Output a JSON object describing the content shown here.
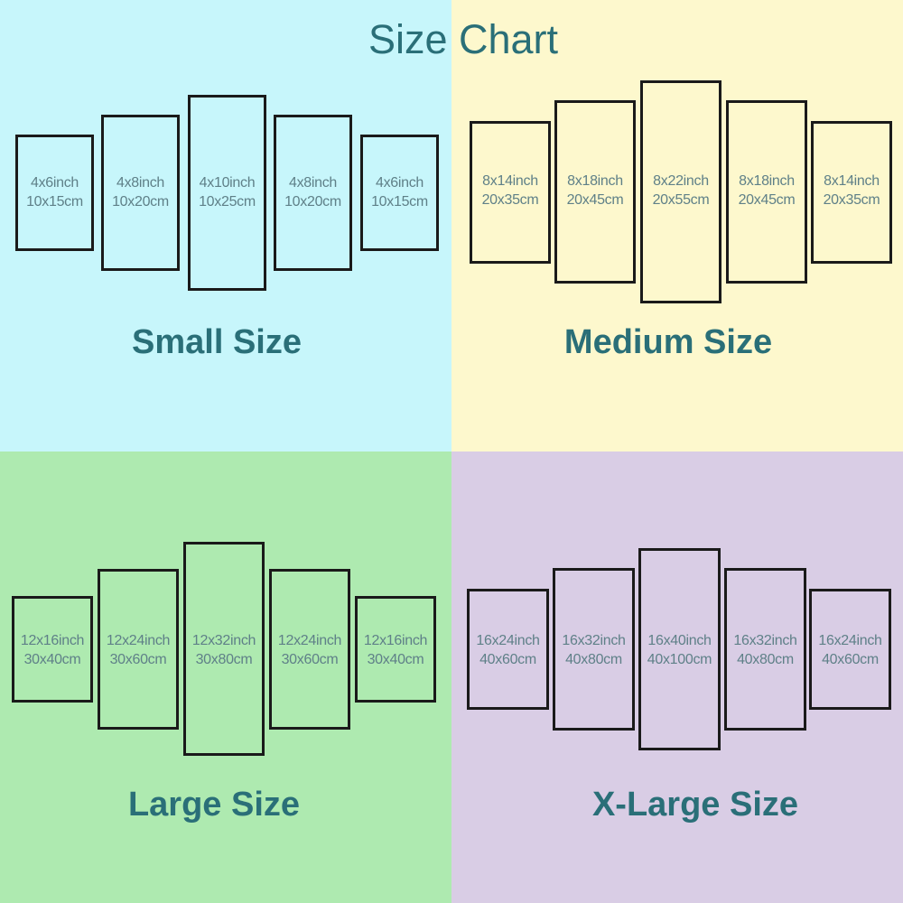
{
  "title": "Size Chart",
  "colors": {
    "small_bg": "#c7f6fb",
    "medium_bg": "#fdf8cd",
    "large_bg": "#aeeab0",
    "xlarge_bg": "#d9cde5",
    "heading": "#2a6f78",
    "panel_text": "#5f8088"
  },
  "groups": [
    {
      "label": "Small Size",
      "panels": [
        {
          "inch": "4x6inch",
          "cm": "10x15cm"
        },
        {
          "inch": "4x8inch",
          "cm": "10x20cm"
        },
        {
          "inch": "4x10inch",
          "cm": "10x25cm"
        },
        {
          "inch": "4x8inch",
          "cm": "10x20cm"
        },
        {
          "inch": "4x6inch",
          "cm": "10x15cm"
        }
      ]
    },
    {
      "label": "Medium Size",
      "panels": [
        {
          "inch": "8x14inch",
          "cm": "20x35cm"
        },
        {
          "inch": "8x18inch",
          "cm": "20x45cm"
        },
        {
          "inch": "8x22inch",
          "cm": "20x55cm"
        },
        {
          "inch": "8x18inch",
          "cm": "20x45cm"
        },
        {
          "inch": "8x14inch",
          "cm": "20x35cm"
        }
      ]
    },
    {
      "label": "Large Size",
      "panels": [
        {
          "inch": "12x16inch",
          "cm": "30x40cm"
        },
        {
          "inch": "12x24inch",
          "cm": "30x60cm"
        },
        {
          "inch": "12x32inch",
          "cm": "30x80cm"
        },
        {
          "inch": "12x24inch",
          "cm": "30x60cm"
        },
        {
          "inch": "12x16inch",
          "cm": "30x40cm"
        }
      ]
    },
    {
      "label": "X-Large Size",
      "panels": [
        {
          "inch": "16x24inch",
          "cm": "40x60cm"
        },
        {
          "inch": "16x32inch",
          "cm": "40x80cm"
        },
        {
          "inch": "16x40inch",
          "cm": "40x100cm"
        },
        {
          "inch": "16x32inch",
          "cm": "40x80cm"
        },
        {
          "inch": "16x24inch",
          "cm": "40x60cm"
        }
      ]
    }
  ]
}
